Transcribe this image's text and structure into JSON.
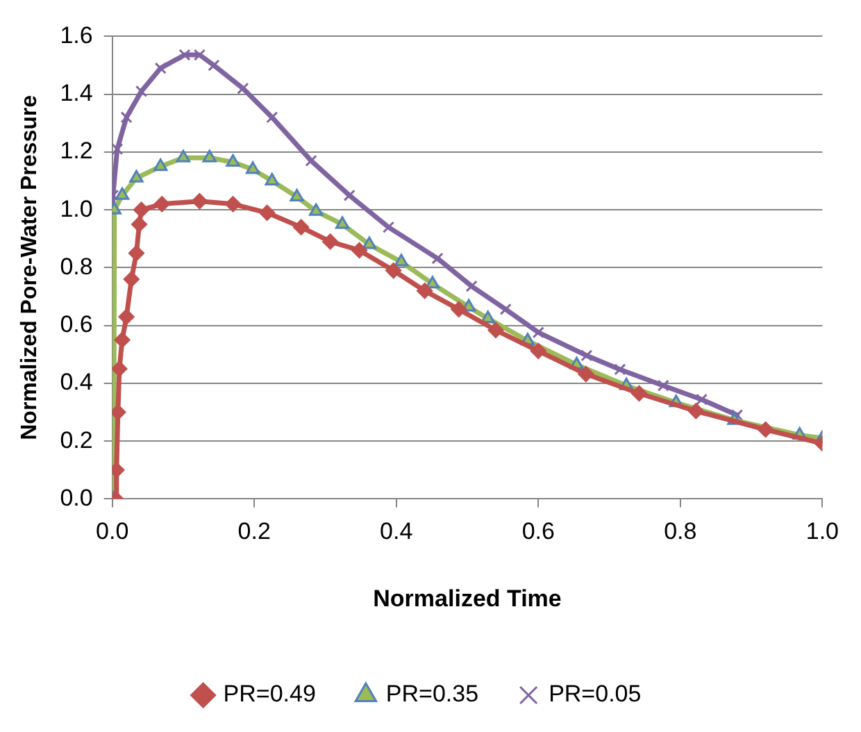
{
  "chart_data": {
    "type": "line",
    "xlabel": "Normalized Time",
    "ylabel": "Normalized Pore-Water Pressure",
    "xlim": [
      0,
      1
    ],
    "ylim": [
      0,
      1.6
    ],
    "xticks": [
      {
        "value": 0,
        "label": "0.0"
      },
      {
        "value": 0.2,
        "label": "0.2"
      },
      {
        "value": 0.4,
        "label": "0.4"
      },
      {
        "value": 0.6,
        "label": "0.6"
      },
      {
        "value": 0.8,
        "label": "0.8"
      },
      {
        "value": 1,
        "label": "1.0"
      }
    ],
    "yticks": [
      {
        "value": 0,
        "label": "0.0"
      },
      {
        "value": 0.2,
        "label": "0.2"
      },
      {
        "value": 0.4,
        "label": "0.4"
      },
      {
        "value": 0.6,
        "label": "0.6"
      },
      {
        "value": 0.8,
        "label": "0.8"
      },
      {
        "value": 1,
        "label": "1.0"
      },
      {
        "value": 1.2,
        "label": "1.2"
      },
      {
        "value": 1.4,
        "label": "1.4"
      },
      {
        "value": 1.6,
        "label": "1.6"
      }
    ],
    "grid": "y",
    "legend": "bottom",
    "series": [
      {
        "name": "PR=0.49",
        "color": "#c0504d",
        "marker": "diamond",
        "x": [
          0.005,
          0.006,
          0.008,
          0.01,
          0.014,
          0.02,
          0.027,
          0.034,
          0.038,
          0.041,
          0.07,
          0.123,
          0.17,
          0.218,
          0.266,
          0.307,
          0.348,
          0.396,
          0.44,
          0.488,
          0.54,
          0.6,
          0.667,
          0.742,
          0.822,
          0.92,
          1.0
        ],
        "values": [
          0,
          0.1,
          0.3,
          0.45,
          0.55,
          0.63,
          0.76,
          0.85,
          0.95,
          1.0,
          1.02,
          1.03,
          1.02,
          0.99,
          0.94,
          0.89,
          0.86,
          0.79,
          0.72,
          0.656,
          0.584,
          0.512,
          0.432,
          0.365,
          0.304,
          0.24,
          0.192
        ]
      },
      {
        "name": "PR=0.35",
        "color": "#9bbb59",
        "marker": "triangle",
        "x": [
          0.002,
          0.003,
          0.014,
          0.034,
          0.068,
          0.1,
          0.137,
          0.17,
          0.198,
          0.225,
          0.26,
          0.287,
          0.324,
          0.362,
          0.407,
          0.451,
          0.502,
          0.529,
          0.585,
          0.654,
          0.724,
          0.794,
          0.876,
          0.968,
          1.0
        ],
        "values": [
          0,
          1.0,
          1.05,
          1.11,
          1.15,
          1.18,
          1.18,
          1.165,
          1.14,
          1.1,
          1.045,
          0.995,
          0.95,
          0.88,
          0.82,
          0.744,
          0.664,
          0.624,
          0.547,
          0.464,
          0.392,
          0.333,
          0.272,
          0.221,
          0.21
        ]
      },
      {
        "name": "PR=0.05",
        "color": "#8064a2",
        "marker": "cross",
        "x": [
          0.0,
          0.001,
          0.007,
          0.02,
          0.041,
          0.068,
          0.102,
          0.123,
          0.143,
          0.184,
          0.225,
          0.28,
          0.334,
          0.389,
          0.458,
          0.506,
          0.554,
          0.6,
          0.668,
          0.715,
          0.776,
          0.83,
          0.88
        ],
        "values": [
          0,
          1.05,
          1.21,
          1.32,
          1.41,
          1.49,
          1.536,
          1.536,
          1.5,
          1.42,
          1.32,
          1.17,
          1.05,
          0.94,
          0.832,
          0.736,
          0.656,
          0.576,
          0.496,
          0.448,
          0.392,
          0.344,
          0.29
        ]
      }
    ]
  }
}
